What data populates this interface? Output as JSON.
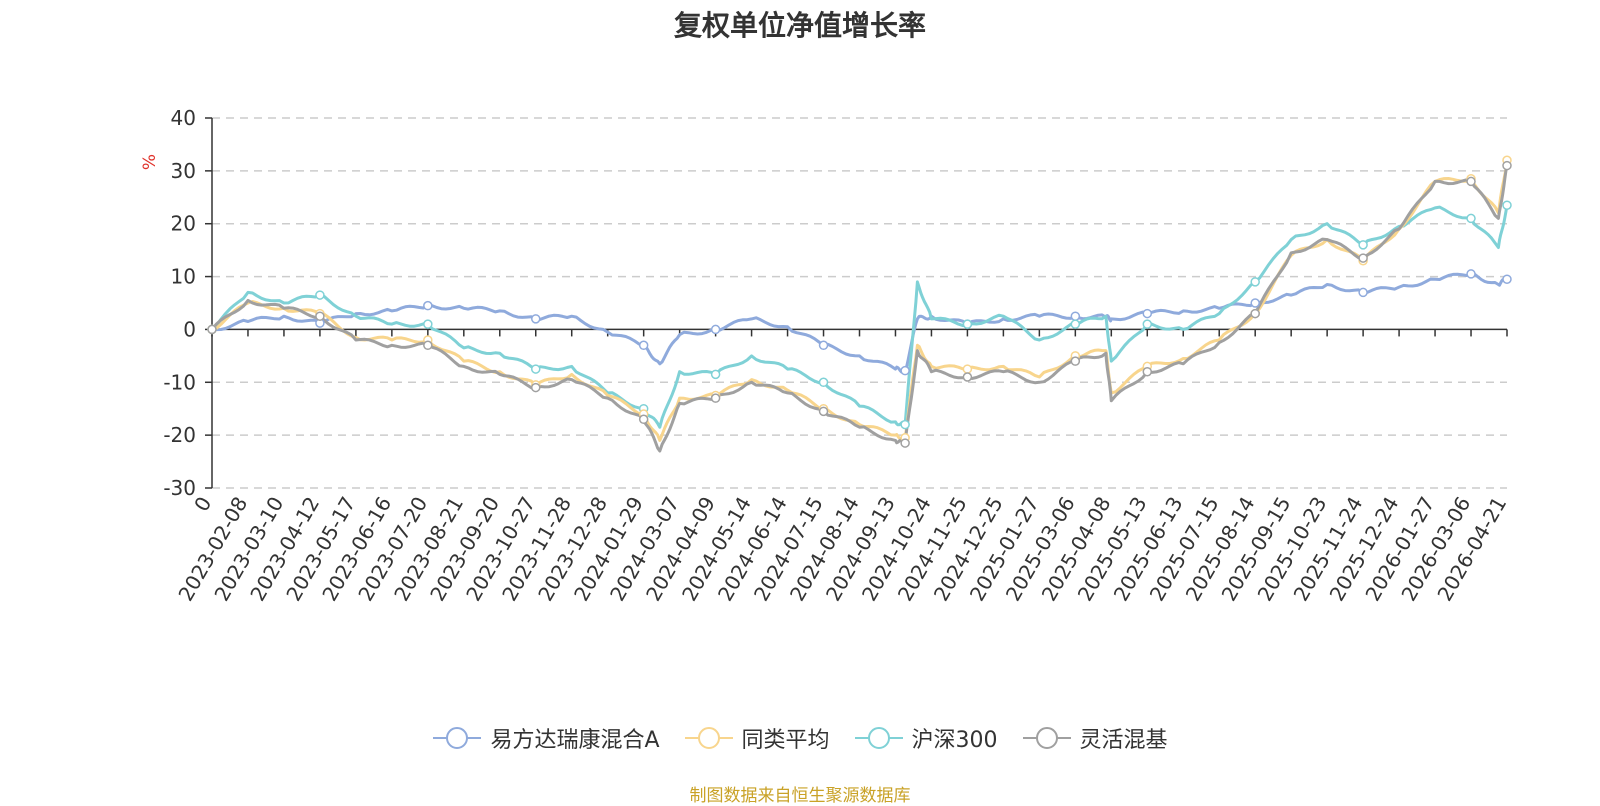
{
  "chart_data": {
    "type": "line",
    "title": "复权单位净值增长率",
    "ylabel": "%",
    "xlabel": "",
    "ylim": [
      -30,
      40
    ],
    "yticks": [
      40,
      30,
      20,
      10,
      0,
      -10,
      -20,
      -30
    ],
    "grid": true,
    "legend_position": "bottom-center",
    "x_tick_labels": [
      "0",
      "2023-02-08",
      "2023-03-10",
      "2023-04-12",
      "2023-05-17",
      "2023-06-16",
      "2023-07-20",
      "2023-08-21",
      "2023-09-20",
      "2023-10-27",
      "2023-11-28",
      "2023-12-28",
      "2024-01-29",
      "2024-03-07",
      "2024-04-09",
      "2024-05-14",
      "2024-06-14",
      "2024-07-15",
      "2024-08-14",
      "2024-09-13",
      "2024-10-24",
      "2024-11-25",
      "2024-12-25",
      "2025-01-27",
      "2025-03-06",
      "2025-04-08",
      "2025-05-13",
      "2025-06-13",
      "2025-07-15",
      "2025-08-14",
      "2025-09-15",
      "2025-10-23",
      "2025-11-24",
      "2025-12-24",
      "2026-01-27",
      "2026-03-06",
      "2026-04-21"
    ],
    "x": [
      "0",
      "2023-02-08",
      "2023-03-10",
      "2023-04-12",
      "2023-05-17",
      "2023-06-16",
      "2023-07-20",
      "2023-08-21",
      "2023-09-20",
      "2023-10-27",
      "2023-11-28",
      "2023-12-28",
      "2024-01-29",
      "2024-02-15",
      "2024-03-07",
      "2024-04-09",
      "2024-05-14",
      "2024-06-14",
      "2024-07-15",
      "2024-08-14",
      "2024-09-13",
      "2024-09-24",
      "2024-10-08",
      "2024-10-24",
      "2024-11-25",
      "2024-12-25",
      "2025-01-27",
      "2025-03-06",
      "2025-04-03",
      "2025-04-08",
      "2025-05-13",
      "2025-06-13",
      "2025-07-15",
      "2025-08-14",
      "2025-09-15",
      "2025-10-23",
      "2025-11-24",
      "2025-12-24",
      "2026-01-27",
      "2026-03-06",
      "2026-04-10",
      "2026-04-21"
    ],
    "series": [
      {
        "name": "易方达瑞康混合A",
        "color": "#8faadc",
        "values": [
          0,
          1.5,
          2.5,
          1.2,
          3.0,
          3.5,
          4.5,
          4.0,
          3.5,
          2.0,
          2.5,
          -0.5,
          -3.0,
          -6.5,
          -1.0,
          0.0,
          2.0,
          0.5,
          -3.0,
          -5.0,
          -7.5,
          -7.8,
          2.0,
          2.5,
          1.0,
          2.0,
          2.5,
          2.5,
          2.3,
          2.0,
          3.0,
          3.5,
          4.0,
          5.0,
          6.5,
          8.5,
          7.0,
          8.0,
          9.5,
          10.5,
          8.5,
          9.5
        ]
      },
      {
        "name": "同类平均",
        "color": "#f8d58d",
        "values": [
          0,
          5.0,
          4.0,
          3.0,
          -1.5,
          -2.0,
          -2.0,
          -6.0,
          -8.0,
          -10.5,
          -8.5,
          -12.5,
          -16.0,
          -21.0,
          -13.0,
          -12.5,
          -9.5,
          -11.5,
          -15.0,
          -18.0,
          -20.0,
          -20.5,
          -3.0,
          -7.0,
          -7.5,
          -7.0,
          -9.0,
          -5.0,
          -4.0,
          -12.0,
          -7.0,
          -5.5,
          -2.0,
          3.0,
          14.0,
          17.0,
          13.0,
          19.0,
          28.0,
          28.5,
          22.0,
          32.0
        ]
      },
      {
        "name": "沪深300",
        "color": "#7fd1d6",
        "values": [
          0,
          7.0,
          5.0,
          6.5,
          2.5,
          1.0,
          1.0,
          -3.5,
          -4.5,
          -7.5,
          -7.0,
          -12.0,
          -15.0,
          -18.5,
          -8.0,
          -8.5,
          -5.0,
          -7.5,
          -10.0,
          -14.5,
          -17.5,
          -18.0,
          9.0,
          2.0,
          1.0,
          2.5,
          -2.0,
          1.0,
          2.5,
          -6.0,
          1.0,
          0.0,
          3.0,
          9.0,
          17.0,
          20.0,
          16.0,
          19.5,
          23.0,
          21.0,
          15.5,
          23.5
        ]
      },
      {
        "name": "灵活混基",
        "color": "#a0a0a0",
        "values": [
          0,
          5.5,
          4.0,
          2.5,
          -2.0,
          -3.0,
          -3.0,
          -7.0,
          -8.5,
          -11.0,
          -9.5,
          -13.0,
          -17.0,
          -23.0,
          -14.0,
          -13.0,
          -10.0,
          -12.0,
          -15.5,
          -18.5,
          -21.0,
          -21.5,
          -4.0,
          -8.0,
          -9.0,
          -8.0,
          -10.0,
          -6.0,
          -4.5,
          -13.5,
          -8.0,
          -6.5,
          -2.5,
          3.0,
          14.5,
          17.0,
          13.5,
          19.0,
          28.0,
          28.0,
          21.0,
          31.0
        ]
      }
    ]
  },
  "legend": [
    "易方达瑞康混合A",
    "同类平均",
    "沪深300",
    "灵活混基"
  ],
  "source_note": "制图数据来自恒生聚源数据库"
}
